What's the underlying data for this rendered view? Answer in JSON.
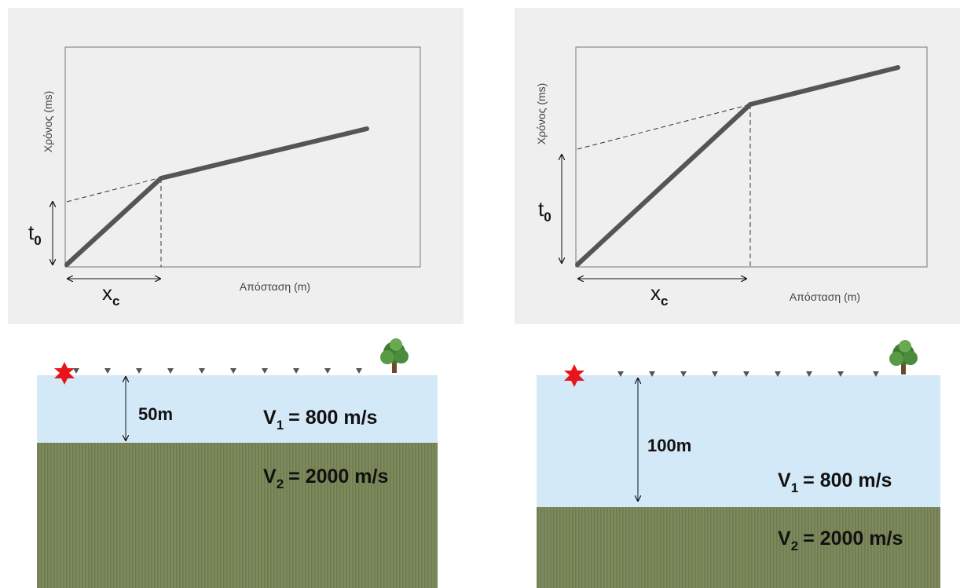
{
  "panels": [
    {
      "graph": {
        "y_label": "Χρόνος (ms)",
        "x_label": "Απόσταση (m)",
        "t0": {
          "base": "t",
          "sub": "0"
        },
        "xc": {
          "base": "x",
          "sub": "c"
        }
      },
      "section": {
        "depth": "50m",
        "v1": {
          "base": "V",
          "sub": "1",
          "rest": "= 800 m/s"
        },
        "v2": {
          "base": "V",
          "sub": "2",
          "rest": "= 2000 m/s"
        }
      }
    },
    {
      "graph": {
        "y_label": "Χρόνος (ms)",
        "x_label": "Απόσταση (m)",
        "t0": {
          "base": "t",
          "sub": "0"
        },
        "xc": {
          "base": "x",
          "sub": "c"
        }
      },
      "section": {
        "depth": "100m",
        "v1": {
          "base": "V",
          "sub": "1",
          "rest": "= 800 m/s"
        },
        "v2": {
          "base": "V",
          "sub": "2",
          "rest": "= 2000 m/s"
        }
      }
    }
  ]
}
